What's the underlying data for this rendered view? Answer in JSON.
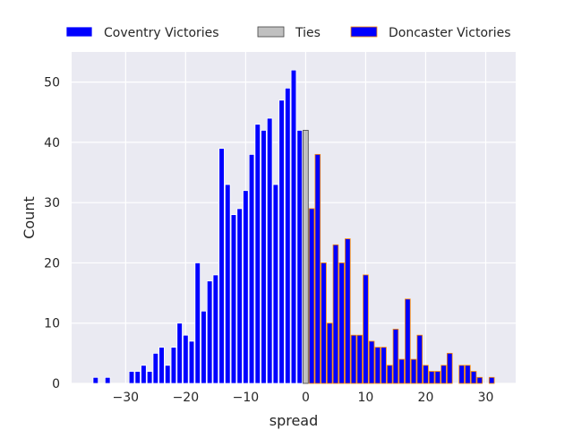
{
  "chart_data": {
    "type": "bar",
    "xlabel": "spread",
    "ylabel": "Count",
    "xlim": [
      -39,
      35
    ],
    "ylim": [
      0,
      55
    ],
    "xticks": [
      -30,
      -20,
      -10,
      0,
      10,
      20,
      30
    ],
    "yticks": [
      0,
      10,
      20,
      30,
      40,
      50
    ],
    "grid": true,
    "legend_position": "top-center",
    "series": [
      {
        "name": "Coventry Victories",
        "color": "#0000ff",
        "edge": "#ffffff",
        "x": [
          -35,
          -33,
          -29,
          -28,
          -27,
          -26,
          -25,
          -24,
          -23,
          -22,
          -21,
          -20,
          -19,
          -18,
          -17,
          -16,
          -15,
          -14,
          -13,
          -12,
          -11,
          -10,
          -9,
          -8,
          -7,
          -6,
          -5,
          -4,
          -3,
          -2,
          -1
        ],
        "values": [
          1,
          1,
          2,
          2,
          3,
          2,
          5,
          6,
          3,
          6,
          10,
          8,
          7,
          20,
          12,
          17,
          18,
          39,
          33,
          28,
          29,
          32,
          38,
          43,
          42,
          44,
          33,
          47,
          49,
          52,
          42
        ]
      },
      {
        "name": "Ties",
        "color": "#c0c0c0",
        "edge": "#404040",
        "x": [
          0
        ],
        "values": [
          42
        ]
      },
      {
        "name": "Doncaster Victories",
        "color": "#0000ff",
        "edge": "#ff8c00",
        "x": [
          1,
          2,
          3,
          4,
          5,
          6,
          7,
          8,
          9,
          10,
          11,
          12,
          13,
          14,
          15,
          16,
          17,
          18,
          19,
          20,
          21,
          22,
          23,
          24,
          26,
          27,
          28,
          29,
          31
        ],
        "values": [
          29,
          38,
          20,
          10,
          23,
          20,
          24,
          8,
          8,
          18,
          7,
          6,
          6,
          3,
          9,
          4,
          14,
          4,
          8,
          3,
          2,
          2,
          3,
          5,
          3,
          3,
          2,
          1,
          1
        ]
      }
    ]
  }
}
